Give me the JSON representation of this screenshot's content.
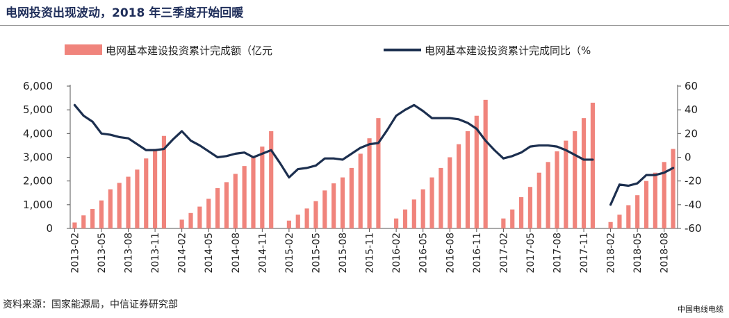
{
  "title": "电网投资出现波动，2018 年三季度开始回暖",
  "source": "资料来源：国家能源局，中信证券研究部",
  "watermark": "中国电线电缆",
  "chart_data": {
    "type": "bar+line",
    "title": "电网投资出现波动，2018 年三季度开始回暖",
    "legend_position": "top",
    "grid": false,
    "colors": {
      "bar": "#f0847c",
      "line": "#1c2f4f"
    },
    "y_left": {
      "ylim": [
        0,
        6000
      ],
      "ticks": [
        0,
        1000,
        2000,
        3000,
        4000,
        5000,
        6000
      ],
      "tick_labels": [
        "0",
        "1,000",
        "2,000",
        "3,000",
        "4,000",
        "5,000",
        "6,000"
      ]
    },
    "y_right": {
      "ylim": [
        -60,
        60
      ],
      "ticks": [
        -60,
        -40,
        -20,
        0,
        20,
        40,
        60
      ],
      "tick_labels": [
        "-60",
        "-40",
        "-20",
        "0",
        "20",
        "40",
        "60"
      ]
    },
    "x_tick_labels": [
      "2013-02",
      "2013-05",
      "2013-08",
      "2013-11",
      "2014-02",
      "2014-05",
      "2014-08",
      "2014-11",
      "2015-02",
      "2015-05",
      "2015-08",
      "2015-11",
      "2016-02",
      "2016-05",
      "2016-08",
      "2016-11",
      "2017-02",
      "2017-05",
      "2017-08",
      "2017-11",
      "2018-02",
      "2018-05",
      "2018-08"
    ],
    "x_tick_every": 3,
    "months": [
      "2013-02",
      "2013-03",
      "2013-04",
      "2013-05",
      "2013-06",
      "2013-07",
      "2013-08",
      "2013-09",
      "2013-10",
      "2013-11",
      "2013-12",
      "2014-01",
      "2014-02",
      "2014-03",
      "2014-04",
      "2014-05",
      "2014-06",
      "2014-07",
      "2014-08",
      "2014-09",
      "2014-10",
      "2014-11",
      "2014-12",
      "2015-01",
      "2015-02",
      "2015-03",
      "2015-04",
      "2015-05",
      "2015-06",
      "2015-07",
      "2015-08",
      "2015-09",
      "2015-10",
      "2015-11",
      "2015-12",
      "2016-01",
      "2016-02",
      "2016-03",
      "2016-04",
      "2016-05",
      "2016-06",
      "2016-07",
      "2016-08",
      "2016-09",
      "2016-10",
      "2016-11",
      "2016-12",
      "2017-01",
      "2017-02",
      "2017-03",
      "2017-04",
      "2017-05",
      "2017-06",
      "2017-07",
      "2017-08",
      "2017-09",
      "2017-10",
      "2017-11",
      "2017-12",
      "2018-01",
      "2018-02",
      "2018-03",
      "2018-04",
      "2018-05",
      "2018-06",
      "2018-07",
      "2018-08",
      "2018-09"
    ],
    "series": [
      {
        "name": "电网基本建设投资累计完成额（亿元",
        "type": "bar",
        "axis": "left",
        "values": [
          250,
          550,
          820,
          1180,
          1650,
          1920,
          2180,
          2480,
          2950,
          3350,
          3900,
          null,
          370,
          650,
          920,
          1250,
          1700,
          1950,
          2300,
          2630,
          3050,
          3450,
          4100,
          null,
          330,
          580,
          840,
          1150,
          1600,
          1900,
          2150,
          2550,
          3150,
          3800,
          4650,
          null,
          420,
          800,
          1220,
          1650,
          2150,
          2550,
          3000,
          3550,
          4100,
          4750,
          5420,
          null,
          420,
          800,
          1320,
          1750,
          2350,
          2800,
          3250,
          3700,
          4100,
          4650,
          5300,
          null,
          270,
          580,
          980,
          1400,
          2000,
          2350,
          2800,
          3350
        ]
      },
      {
        "name": "电网基本建设投资累计完成同比（%",
        "type": "line",
        "axis": "right",
        "values": [
          44,
          35,
          30,
          20,
          19,
          17,
          16,
          11,
          6,
          6,
          7,
          15,
          22,
          14,
          10,
          5,
          0,
          1,
          3,
          4,
          0,
          3,
          6,
          -5,
          -17,
          -10,
          -9,
          -7,
          -1,
          -1,
          -2,
          3,
          8,
          11,
          12,
          23,
          35,
          40,
          44,
          39,
          33,
          33,
          33,
          32,
          29,
          24,
          14,
          6,
          -1,
          1,
          4,
          9,
          10,
          10,
          9,
          6,
          2,
          -2,
          -2,
          null,
          -40,
          -23,
          -24,
          -22,
          -15,
          -15,
          -13,
          -9
        ]
      }
    ]
  }
}
